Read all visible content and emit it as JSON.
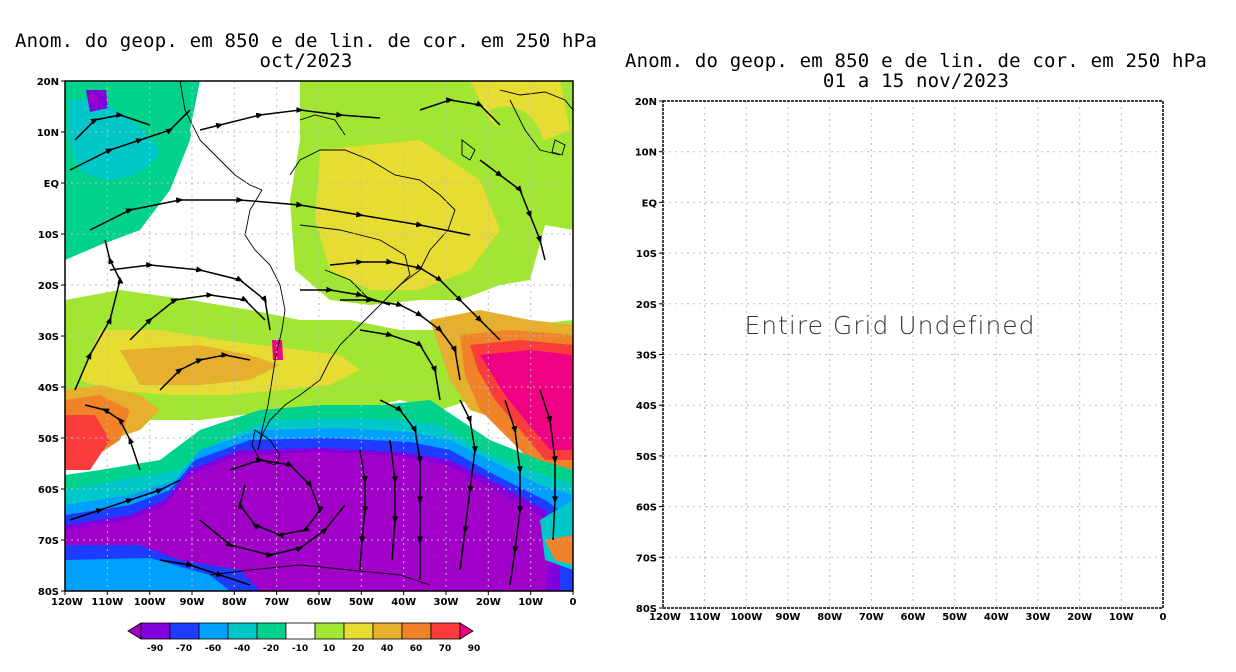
{
  "left_map": {
    "title_line1": "Anom. do geop. em 850 e de lin. de cor. em 250 hPa",
    "title_line2": "oct/2023",
    "lat_labels": [
      "20N",
      "10N",
      "EQ",
      "10S",
      "20S",
      "30S",
      "40S",
      "50S",
      "60S",
      "70S",
      "80S"
    ],
    "lon_labels": [
      "120W",
      "110W",
      "100W",
      "90W",
      "80W",
      "70W",
      "60W",
      "50W",
      "40W",
      "30W",
      "20W",
      "10W",
      "0"
    ],
    "colorbar": {
      "labels": [
        "-90",
        "-70",
        "-60",
        "-40",
        "-20",
        "-10",
        "10",
        "20",
        "40",
        "60",
        "70",
        "90"
      ],
      "colors": [
        "#a000c8",
        "#8200dc",
        "#1e3cff",
        "#00a0ff",
        "#00c8c8",
        "#00d28c",
        "#ffffff",
        "#a0e632",
        "#e6dc32",
        "#e6af2d",
        "#f08228",
        "#fa3c3c",
        "#f00082"
      ]
    }
  },
  "right_map": {
    "title_line1": "Anom. do geop. em 850 e de lin. de cor. em 250 hPa",
    "title_line2": "01 a 15 nov/2023",
    "message": "Entire Grid Undefined",
    "lat_labels": [
      "20N",
      "10N",
      "EQ",
      "10S",
      "20S",
      "30S",
      "40S",
      "50S",
      "60S",
      "70S",
      "80S"
    ],
    "lon_labels": [
      "120W",
      "110W",
      "100W",
      "90W",
      "80W",
      "70W",
      "60W",
      "50W",
      "40W",
      "30W",
      "20W",
      "10W",
      "0"
    ]
  },
  "colors": {
    "frame": "#000000",
    "grid": "#b4b4b4"
  }
}
